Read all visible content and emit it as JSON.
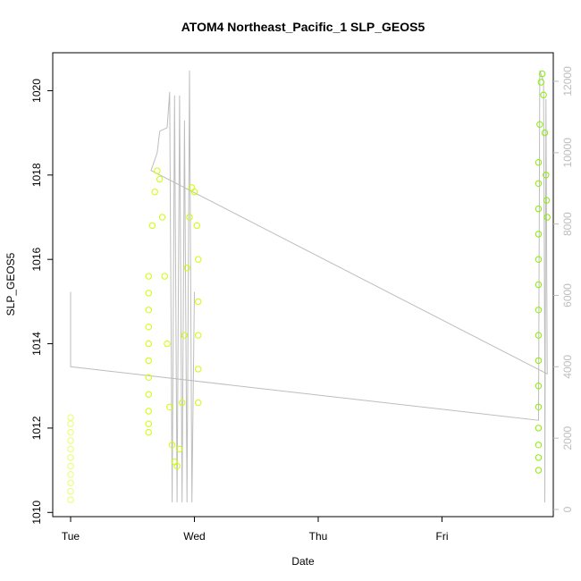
{
  "chart_data": {
    "type": "scatter",
    "title": "ATOM4 Northeast_Pacific_1 SLP_GEOS5",
    "xlabel": "Date",
    "ylabel": "SLP_GEOS5",
    "x_ticks": [
      "Tue",
      "Wed",
      "Thu",
      "Fri"
    ],
    "y_ticks": [
      1010,
      1012,
      1014,
      1016,
      1018,
      1020
    ],
    "y2_ticks": [
      0,
      2000,
      4000,
      6000,
      8000,
      10000,
      12000
    ],
    "ylim": [
      1009.9,
      1020.9
    ],
    "y2lim": [
      -200,
      12800
    ],
    "grid": false,
    "colors": {
      "light_yellow": "#e6ff66",
      "yellow": "#ccff00",
      "green": "#88ee00",
      "line": "#bdbdbd"
    },
    "series": [
      {
        "marker": "circle-open",
        "color": "#e6ff66",
        "points": [
          [
            0.0,
            1010.3
          ],
          [
            0.0,
            1010.5
          ],
          [
            0.0,
            1010.7
          ],
          [
            0.0,
            1010.9
          ],
          [
            0.0,
            1011.1
          ],
          [
            0.0,
            1011.3
          ],
          [
            0.0,
            1011.5
          ],
          [
            0.0,
            1011.7
          ],
          [
            0.0,
            1011.9
          ],
          [
            0.0,
            1012.1
          ],
          [
            0.0,
            1012.25
          ]
        ]
      },
      {
        "marker": "circle-open",
        "color": "#ccff00",
        "points": [
          [
            0.63,
            1011.9
          ],
          [
            0.63,
            1012.1
          ],
          [
            0.63,
            1012.4
          ],
          [
            0.63,
            1012.8
          ],
          [
            0.63,
            1013.2
          ],
          [
            0.63,
            1013.6
          ],
          [
            0.63,
            1014.0
          ],
          [
            0.63,
            1014.4
          ],
          [
            0.63,
            1014.8
          ],
          [
            0.63,
            1015.2
          ],
          [
            0.63,
            1015.6
          ],
          [
            0.66,
            1016.8
          ],
          [
            0.68,
            1017.6
          ],
          [
            0.7,
            1018.1
          ],
          [
            0.72,
            1017.9
          ],
          [
            0.74,
            1017.0
          ],
          [
            0.76,
            1015.6
          ],
          [
            0.78,
            1014.0
          ],
          [
            0.8,
            1012.5
          ],
          [
            0.82,
            1011.6
          ],
          [
            0.84,
            1011.2
          ],
          [
            0.86,
            1011.1
          ],
          [
            0.88,
            1011.5
          ],
          [
            0.9,
            1012.6
          ],
          [
            0.92,
            1014.2
          ],
          [
            0.94,
            1015.8
          ],
          [
            0.96,
            1017.0
          ],
          [
            0.98,
            1017.7
          ],
          [
            1.0,
            1017.6
          ],
          [
            1.02,
            1016.8
          ],
          [
            1.03,
            1016.0
          ],
          [
            1.03,
            1015.0
          ],
          [
            1.03,
            1014.2
          ],
          [
            1.03,
            1013.4
          ],
          [
            1.03,
            1012.6
          ]
        ]
      },
      {
        "marker": "circle-open",
        "color": "#88ee00",
        "points": [
          [
            3.78,
            1011.0
          ],
          [
            3.78,
            1011.3
          ],
          [
            3.78,
            1011.6
          ],
          [
            3.78,
            1012.0
          ],
          [
            3.78,
            1012.5
          ],
          [
            3.78,
            1013.0
          ],
          [
            3.78,
            1013.6
          ],
          [
            3.78,
            1014.2
          ],
          [
            3.78,
            1014.8
          ],
          [
            3.78,
            1015.4
          ],
          [
            3.78,
            1016.0
          ],
          [
            3.78,
            1016.6
          ],
          [
            3.78,
            1017.2
          ],
          [
            3.78,
            1017.8
          ],
          [
            3.78,
            1018.3
          ],
          [
            3.79,
            1019.2
          ],
          [
            3.8,
            1020.2
          ],
          [
            3.81,
            1020.4
          ],
          [
            3.82,
            1019.9
          ],
          [
            3.83,
            1019.0
          ],
          [
            3.84,
            1018.0
          ],
          [
            3.845,
            1017.4
          ],
          [
            3.85,
            1017.0
          ]
        ]
      }
    ],
    "line_right_axis": {
      "color": "#bdbdbd",
      "points": [
        [
          0.0,
          6100
        ],
        [
          0.0,
          4000
        ],
        [
          3.78,
          2500
        ],
        [
          3.79,
          12300
        ],
        [
          3.82,
          12000
        ],
        [
          3.83,
          4000
        ],
        [
          3.83,
          200
        ],
        [
          3.84,
          11500
        ],
        [
          3.85,
          3800
        ],
        [
          0.65,
          9500
        ],
        [
          0.7,
          10000
        ],
        [
          0.72,
          10600
        ],
        [
          0.78,
          10700
        ],
        [
          0.8,
          11700
        ],
        [
          0.82,
          200
        ],
        [
          0.84,
          11600
        ],
        [
          0.86,
          200
        ],
        [
          0.88,
          11600
        ],
        [
          0.9,
          200
        ],
        [
          0.92,
          10900
        ],
        [
          0.94,
          200
        ],
        [
          0.96,
          12300
        ],
        [
          0.98,
          200
        ],
        [
          1.0,
          6100
        ]
      ]
    }
  }
}
